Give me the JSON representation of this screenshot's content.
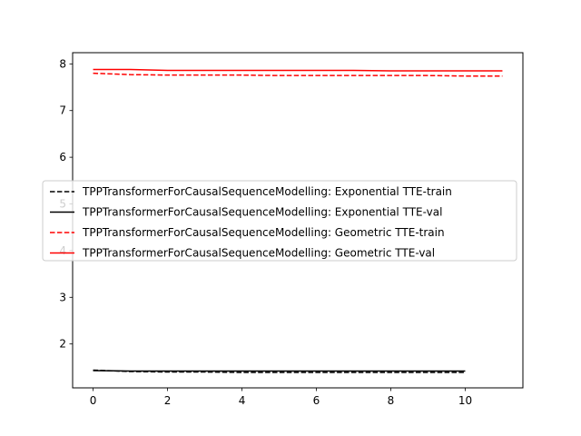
{
  "chart_data": {
    "type": "line",
    "title": "",
    "xlabel": "",
    "ylabel": "",
    "xlim": [
      -0.55,
      11.55
    ],
    "ylim": [
      1.06,
      8.24
    ],
    "xticks": [
      0,
      2,
      4,
      6,
      8,
      10
    ],
    "yticks": [
      2,
      3,
      4,
      5,
      6,
      7,
      8
    ],
    "grid": false,
    "legend_position": "center-left",
    "series": [
      {
        "name": "TPPTransformerForCausalSequenceModelling: Exponential TTE-train",
        "color": "#000000",
        "dash": true,
        "x": [
          0,
          1,
          2,
          3,
          4,
          5,
          6,
          7,
          8,
          9,
          10
        ],
        "y": [
          1.44,
          1.41,
          1.4,
          1.4,
          1.39,
          1.39,
          1.39,
          1.39,
          1.39,
          1.39,
          1.39
        ]
      },
      {
        "name": "TPPTransformerForCausalSequenceModelling: Exponential TTE-val",
        "color": "#000000",
        "dash": false,
        "x": [
          0,
          1,
          2,
          3,
          4,
          5,
          6,
          7,
          8,
          9,
          10
        ],
        "y": [
          1.43,
          1.42,
          1.42,
          1.42,
          1.42,
          1.42,
          1.42,
          1.42,
          1.42,
          1.42,
          1.42
        ]
      },
      {
        "name": "TPPTransformerForCausalSequenceModelling: Geometric TTE-train",
        "color": "#ff0000",
        "dash": true,
        "x": [
          0,
          1,
          2,
          3,
          4,
          5,
          6,
          7,
          8,
          9,
          10,
          11
        ],
        "y": [
          7.8,
          7.77,
          7.76,
          7.76,
          7.76,
          7.75,
          7.75,
          7.75,
          7.75,
          7.75,
          7.74,
          7.74
        ]
      },
      {
        "name": "TPPTransformerForCausalSequenceModelling: Geometric TTE-val",
        "color": "#ff0000",
        "dash": false,
        "x": [
          0,
          1,
          2,
          3,
          4,
          5,
          6,
          7,
          8,
          9,
          10,
          11
        ],
        "y": [
          7.88,
          7.88,
          7.86,
          7.86,
          7.86,
          7.86,
          7.86,
          7.86,
          7.85,
          7.85,
          7.85,
          7.85
        ]
      }
    ]
  }
}
